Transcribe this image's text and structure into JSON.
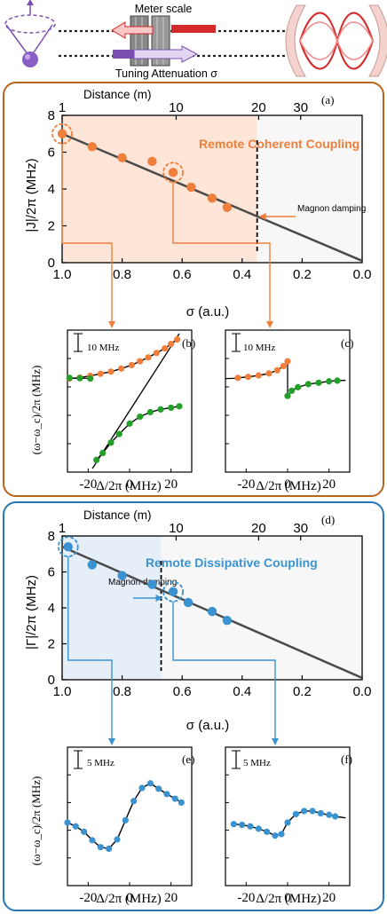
{
  "schematic": {
    "meter_label": "Meter scale",
    "tuning_label": "Tuning Attenuation σ"
  },
  "colors": {
    "orange": "#f07f3c",
    "orange_frame": "#b9641d",
    "orange_fill": "#fde6d8",
    "blue": "#3a93d0",
    "blue_frame": "#2876b6",
    "blue_fill": "#e6eef8",
    "green": "#22a02a",
    "line": "#4a4a4a",
    "purple": "#7b4fb0",
    "red": "#d42a2a"
  },
  "chart_data": [
    {
      "id": "a",
      "type": "scatter",
      "panel_label": "(a)",
      "top_axis_title": "Distance (m)",
      "top_ticks": [
        "1",
        "10",
        "20",
        "30"
      ],
      "xlabel": "σ (a.u.)",
      "ylabel": "|J|/2π (MHz)",
      "xlim": [
        1.0,
        0.0
      ],
      "ylim": [
        0,
        8
      ],
      "xticks": [
        "1.0",
        "0.8",
        "0.6",
        "0.4",
        "0.2",
        "0.0"
      ],
      "yticks": [
        "0",
        "2",
        "4",
        "6",
        "8"
      ],
      "region_label": "Remote Coherent Coupling",
      "annotation": "Magnon damping",
      "threshold_sigma": 0.35,
      "points": [
        [
          1.0,
          7.0
        ],
        [
          0.9,
          6.3
        ],
        [
          0.8,
          5.7
        ],
        [
          0.7,
          5.5
        ],
        [
          0.63,
          4.9
        ],
        [
          0.57,
          4.1
        ],
        [
          0.5,
          3.5
        ],
        [
          0.45,
          3.0
        ]
      ],
      "fit": [
        [
          1.0,
          7.0
        ],
        [
          0.0,
          0.1
        ]
      ],
      "highlighted_points": [
        [
          1.0,
          7.0
        ],
        [
          0.63,
          4.9
        ]
      ]
    },
    {
      "id": "b",
      "type": "scatter",
      "panel_label": "(b)",
      "xlabel": "Δ/2π  (MHz)",
      "ylabel": "(ω−ω_c)/2π  (MHz)",
      "xticks": [
        "-20",
        "0",
        "20"
      ],
      "scale_bar": "10 MHz",
      "series": [
        {
          "color": "orange",
          "points": [
            [
              -29,
              0.0
            ],
            [
              -24,
              0.3
            ],
            [
              -19,
              0.8
            ],
            [
              -14,
              1.4
            ],
            [
              -9,
              2.0
            ],
            [
              -4,
              2.9
            ],
            [
              1,
              3.9
            ],
            [
              5,
              5.0
            ],
            [
              9,
              6.1
            ],
            [
              13,
              7.4
            ],
            [
              17,
              8.7
            ],
            [
              20,
              10.0
            ],
            [
              23,
              11.3
            ]
          ]
        },
        {
          "color": "green",
          "points": [
            [
              -29,
              0.2
            ],
            [
              -24,
              0.1
            ],
            [
              -19,
              0.0
            ],
            [
              -16,
              -23.5
            ],
            [
              -13,
              -21.5
            ],
            [
              -9,
              -18.5
            ],
            [
              -5,
              -16.0
            ],
            [
              0,
              -13.0
            ],
            [
              5,
              -11.0
            ],
            [
              10,
              -9.7
            ],
            [
              15,
              -8.9
            ],
            [
              20,
              -8.4
            ],
            [
              24,
              -8.0
            ]
          ]
        }
      ]
    },
    {
      "id": "c",
      "type": "scatter",
      "panel_label": "(c)",
      "xlabel": "Δ/2π  (MHz)",
      "xticks": [
        "-20",
        "0",
        "20"
      ],
      "scale_bar": "10 MHz",
      "series": [
        {
          "color": "orange",
          "points": [
            [
              -24,
              0.2
            ],
            [
              -19,
              0.5
            ],
            [
              -14,
              0.9
            ],
            [
              -9,
              1.5
            ],
            [
              -5,
              2.4
            ],
            [
              -2,
              3.6
            ],
            [
              0,
              5.0
            ]
          ]
        },
        {
          "color": "green",
          "points": [
            [
              0,
              -5.0
            ],
            [
              2,
              -3.5
            ],
            [
              5,
              -2.5
            ],
            [
              10,
              -1.6
            ],
            [
              15,
              -1.2
            ],
            [
              20,
              -0.8
            ],
            [
              24,
              -0.6
            ]
          ]
        }
      ]
    },
    {
      "id": "d",
      "type": "scatter",
      "panel_label": "(d)",
      "top_axis_title": "Distance (m)",
      "top_ticks": [
        "1",
        "10",
        "20",
        "30"
      ],
      "xlabel": "σ (a.u.)",
      "ylabel": "|Γ|/2π (MHz)",
      "xlim": [
        1.0,
        0.0
      ],
      "ylim": [
        0,
        8
      ],
      "xticks": [
        "1.0",
        "0.8",
        "0.6",
        "0.4",
        "0.2",
        "0.0"
      ],
      "yticks": [
        "0",
        "2",
        "4",
        "6",
        "8"
      ],
      "region_label": "Remote Dissipative Coupling",
      "annotation": "Magnon damping",
      "threshold_sigma": 0.67,
      "points": [
        [
          0.98,
          7.4
        ],
        [
          0.9,
          6.4
        ],
        [
          0.8,
          5.8
        ],
        [
          0.7,
          5.3
        ],
        [
          0.63,
          4.9
        ],
        [
          0.58,
          4.3
        ],
        [
          0.5,
          3.8
        ],
        [
          0.45,
          3.3
        ]
      ],
      "fit": [
        [
          1.0,
          7.4
        ],
        [
          0.0,
          0.1
        ]
      ],
      "highlighted_points": [
        [
          0.98,
          7.4
        ],
        [
          0.63,
          4.9
        ]
      ]
    },
    {
      "id": "e",
      "type": "scatter",
      "panel_label": "(e)",
      "xlabel": "Δ/2π  (MHz)",
      "ylabel": "(ω−ω_c)/2π  (MHz)",
      "xticks": [
        "-20",
        "0",
        "20"
      ],
      "scale_bar": "5 MHz",
      "series": [
        {
          "color": "blue",
          "points": [
            [
              -30,
              0.2
            ],
            [
              -26,
              -0.3
            ],
            [
              -22,
              -1.0
            ],
            [
              -18,
              -2.1
            ],
            [
              -14,
              -3.0
            ],
            [
              -10,
              -3.2
            ],
            [
              -6,
              -2.0
            ],
            [
              -2,
              0.5
            ],
            [
              2,
              3.0
            ],
            [
              6,
              4.7
            ],
            [
              10,
              5.3
            ],
            [
              14,
              4.6
            ],
            [
              18,
              3.9
            ],
            [
              22,
              3.3
            ],
            [
              25,
              2.8
            ]
          ]
        }
      ]
    },
    {
      "id": "f",
      "type": "scatter",
      "panel_label": "(f)",
      "xlabel": "Δ/2π  (MHz)",
      "xticks": [
        "-20",
        "0",
        "20"
      ],
      "scale_bar": "5 MHz",
      "series": [
        {
          "color": "blue",
          "points": [
            [
              -26,
              0.0
            ],
            [
              -22,
              -0.1
            ],
            [
              -18,
              -0.3
            ],
            [
              -14,
              -0.6
            ],
            [
              -10,
              -1.0
            ],
            [
              -6,
              -1.5
            ],
            [
              -3,
              -1.3
            ],
            [
              0,
              0.2
            ],
            [
              4,
              1.3
            ],
            [
              8,
              1.7
            ],
            [
              12,
              1.7
            ],
            [
              16,
              1.4
            ],
            [
              20,
              1.2
            ],
            [
              23,
              1.0
            ]
          ]
        }
      ]
    }
  ]
}
